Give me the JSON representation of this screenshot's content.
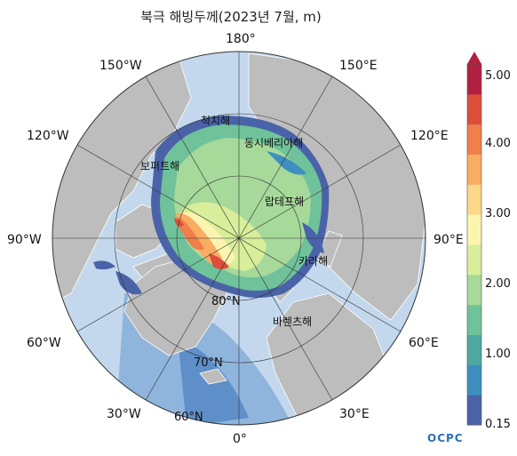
{
  "title": "북극 해빙두께(2023년 7월, m)",
  "longitude_labels": {
    "180": "180°",
    "150w": "150°W",
    "150e": "150°E",
    "120w": "120°W",
    "120e": "120°E",
    "90w": "90°W",
    "90e": "90°E",
    "60w": "60°W",
    "60e": "60°E",
    "30w": "30°W",
    "30e": "30°E",
    "0": "0°"
  },
  "latitude_labels": {
    "80": "80°N",
    "70": "70°N",
    "60": "60°N"
  },
  "seas": {
    "chukchi": "척치해",
    "east_siberian": "동시베리아해",
    "beaufort": "보퍼트해",
    "laptev": "랍테프해",
    "kara": "카라해",
    "barents": "바렌츠해"
  },
  "colorbar": {
    "ticks": [
      "5.00",
      "4.00",
      "3.00",
      "2.00",
      "1.00",
      "0.15"
    ],
    "colors": [
      "#4a63a8",
      "#3e8fc0",
      "#4fa8a0",
      "#6fc29a",
      "#a6d99a",
      "#d8ee9a",
      "#fbf5b0",
      "#fcd88a",
      "#f9ad62",
      "#f07f4c",
      "#dc4d3a",
      "#b0203f"
    ]
  },
  "logo": "OCPC"
}
